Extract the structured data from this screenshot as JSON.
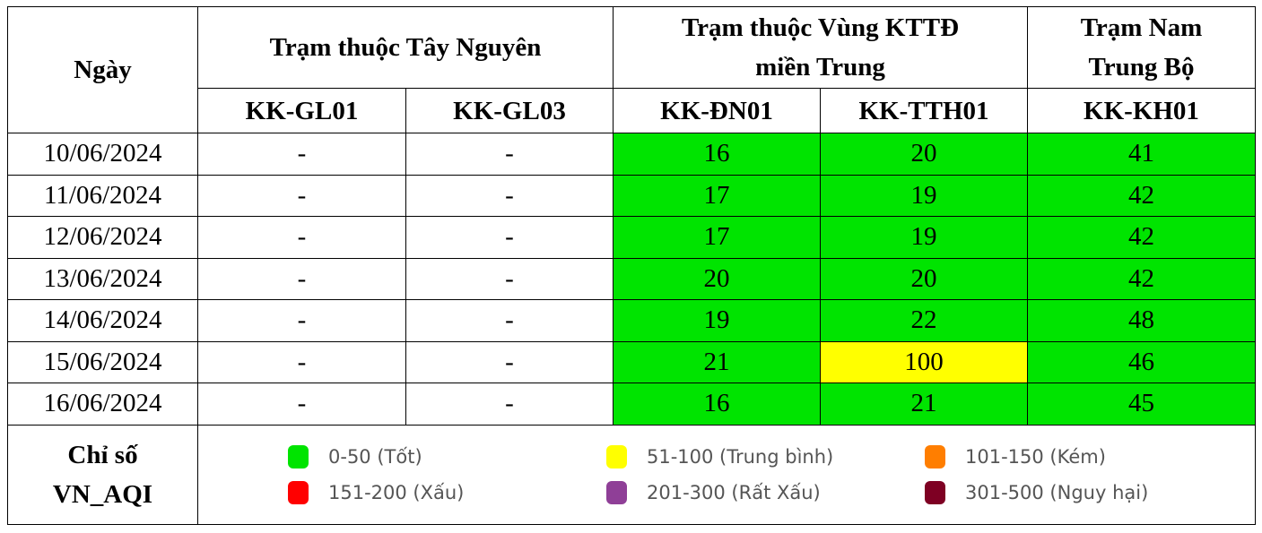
{
  "header": {
    "date_label": "Ngày",
    "groups": [
      {
        "label": "Trạm thuộc Tây Nguyên"
      },
      {
        "label_line1": "Trạm thuộc Vùng KTTĐ",
        "label_line2": "miền Trung"
      },
      {
        "label_line1": "Trạm Nam",
        "label_line2": "Trung Bộ"
      }
    ],
    "stations": [
      "KK-GL01",
      "KK-GL03",
      "KK-ĐN01",
      "KK-TTH01",
      "KK-KH01"
    ]
  },
  "rows": [
    {
      "date": "10/06/2024",
      "values": [
        "-",
        "-",
        "16",
        "20",
        "41"
      ]
    },
    {
      "date": "11/06/2024",
      "values": [
        "-",
        "-",
        "17",
        "19",
        "42"
      ]
    },
    {
      "date": "12/06/2024",
      "values": [
        "-",
        "-",
        "17",
        "19",
        "42"
      ]
    },
    {
      "date": "13/06/2024",
      "values": [
        "-",
        "-",
        "20",
        "20",
        "42"
      ]
    },
    {
      "date": "14/06/2024",
      "values": [
        "-",
        "-",
        "19",
        "22",
        "48"
      ]
    },
    {
      "date": "15/06/2024",
      "values": [
        "-",
        "-",
        "21",
        "100",
        "46"
      ]
    },
    {
      "date": "16/06/2024",
      "values": [
        "-",
        "-",
        "16",
        "21",
        "45"
      ]
    }
  ],
  "legend": {
    "label_line1": "Chỉ số",
    "label_line2": "VN_AQI",
    "items": [
      {
        "text": "0-50 (Tốt)",
        "color": "#00e400"
      },
      {
        "text": "51-100 (Trung bình)",
        "color": "#ffff00"
      },
      {
        "text": "101-150 (Kém)",
        "color": "#ff7e00"
      },
      {
        "text": "151-200 (Xấu)",
        "color": "#ff0000"
      },
      {
        "text": "201-300 (Rất Xấu)",
        "color": "#8f3f97"
      },
      {
        "text": "301-500 (Nguy hại)",
        "color": "#7e0023"
      }
    ]
  },
  "colors": {
    "good": "#00e400",
    "moderate": "#ffff00"
  }
}
